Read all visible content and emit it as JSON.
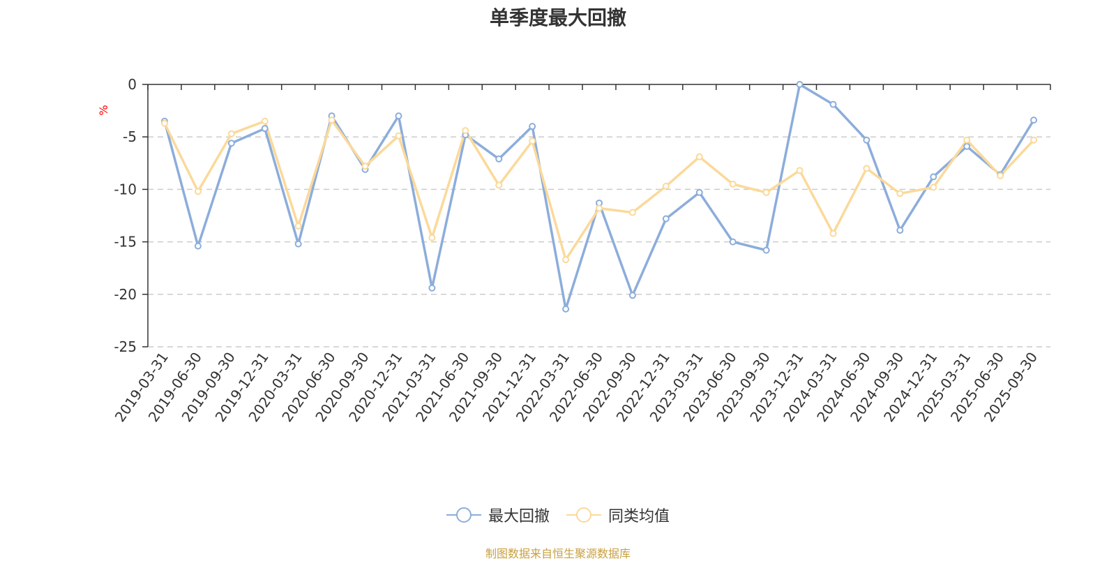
{
  "chart_data": {
    "type": "line",
    "title": "单季度最大回撤",
    "ylabel": "%",
    "ylim": [
      -25,
      0
    ],
    "yticks": [
      0,
      -5,
      -10,
      -15,
      -20,
      -25
    ],
    "grid": true,
    "legend_position": "bottom",
    "categories": [
      "2019-03-31",
      "2019-06-30",
      "2019-09-30",
      "2019-12-31",
      "2020-03-31",
      "2020-06-30",
      "2020-09-30",
      "2020-12-31",
      "2021-03-31",
      "2021-06-30",
      "2021-09-30",
      "2021-12-31",
      "2022-03-31",
      "2022-06-30",
      "2022-09-30",
      "2022-12-31",
      "2023-03-31",
      "2023-06-30",
      "2023-09-30",
      "2023-12-31",
      "2024-03-31",
      "2024-06-30",
      "2024-09-30",
      "2024-12-31",
      "2025-03-31",
      "2025-06-30",
      "2025-09-30"
    ],
    "series": [
      {
        "name": "最大回撤",
        "color": "#8caddb",
        "values": [
          -3.5,
          -15.4,
          -5.6,
          -4.2,
          -15.2,
          -3.0,
          -8.1,
          -3.0,
          -19.4,
          -4.8,
          -7.1,
          -4.0,
          -21.4,
          -11.3,
          -20.1,
          -12.8,
          -10.3,
          -15.0,
          -15.8,
          0.0,
          -1.9,
          -5.3,
          -13.9,
          -8.8,
          -5.9,
          -8.6,
          -3.4
        ]
      },
      {
        "name": "同类均值",
        "color": "#fbd99a",
        "values": [
          -3.7,
          -10.2,
          -4.7,
          -3.5,
          -13.5,
          -3.4,
          -7.8,
          -4.9,
          -14.6,
          -4.4,
          -9.6,
          -5.4,
          -16.7,
          -11.8,
          -12.2,
          -9.7,
          -6.9,
          -9.5,
          -10.3,
          -8.2,
          -14.2,
          -8.0,
          -10.4,
          -9.8,
          -5.3,
          -8.7,
          -5.3
        ]
      }
    ]
  },
  "footer": {
    "source": "制图数据来自恒生聚源数据库",
    "color": "#c8a040"
  }
}
